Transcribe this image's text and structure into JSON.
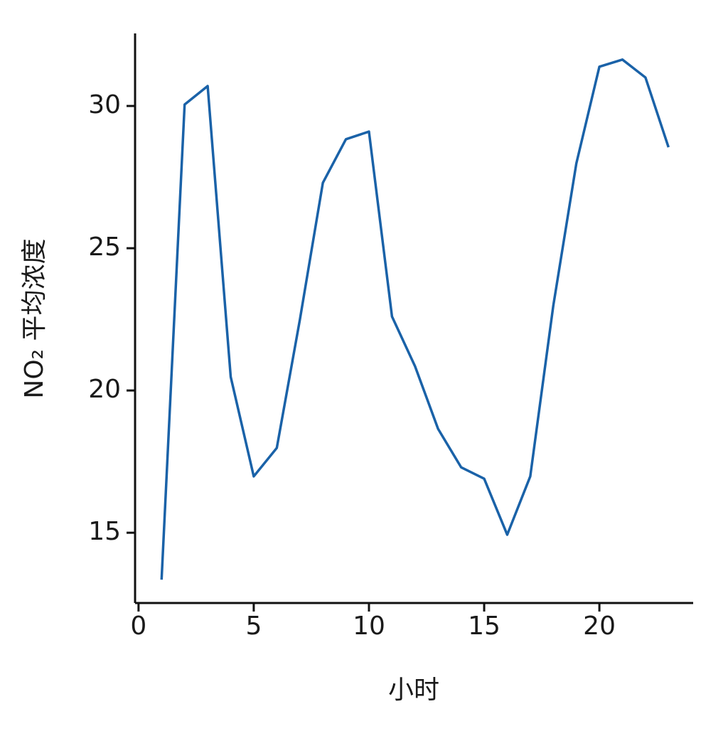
{
  "chart_data": {
    "type": "line",
    "x_label": "小时",
    "y_label": "NO₂ 平均浓度",
    "x": [
      1,
      2,
      3,
      4,
      5,
      6,
      7,
      8,
      9,
      10,
      11,
      12,
      13,
      14,
      15,
      16,
      17,
      18,
      19,
      20,
      21,
      22,
      23
    ],
    "values": [
      13.35,
      30.05,
      30.7,
      20.48,
      16.98,
      17.98,
      22.48,
      27.3,
      28.83,
      29.1,
      22.6,
      20.85,
      18.65,
      17.3,
      16.9,
      14.93,
      16.98,
      22.98,
      27.98,
      31.38,
      31.63,
      31.0,
      28.55
    ],
    "color": "#1a62a8",
    "xlim": [
      -0.15,
      24.07
    ],
    "ylim": [
      12.53,
      32.55
    ],
    "xticks": [
      0,
      5,
      10,
      15,
      20
    ],
    "yticks": [
      15,
      20,
      25,
      30
    ],
    "grid": false
  }
}
